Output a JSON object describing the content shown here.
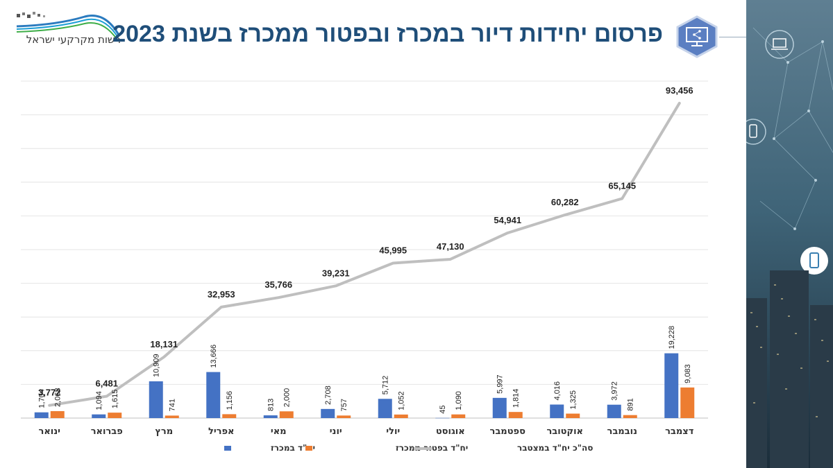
{
  "header": {
    "logo_text": "רשות מקרקעי ישראל",
    "title": "פרסום יחידות דיור במכרז ובפטור ממכרז בשנת 2023"
  },
  "icons": {
    "hex_icon": "monitor-share-icon",
    "side_icons": [
      "laptop-icon",
      "phone-icon",
      "mobile-icon"
    ]
  },
  "colors": {
    "series_a": "#4472C4",
    "series_b": "#ED7D31",
    "series_total": "#BFBFBF",
    "title": "#1F4E79",
    "hex": "#5B7FC2"
  },
  "chart_data": {
    "type": "bar",
    "categories": [
      "ינואר",
      "פברואר",
      "מרץ",
      "אפריל",
      "מאי",
      "יוני",
      "יולי",
      "אוגוסט",
      "ספטמבר",
      "אוקטובר",
      "נובמבר",
      "דצמבר"
    ],
    "series": [
      {
        "name": "יח\"ד במכרז",
        "type": "bar",
        "values": [
          1704,
          1094,
          10909,
          13666,
          813,
          2708,
          5712,
          45,
          5997,
          4016,
          3972,
          19228
        ],
        "labels": [
          "1,704",
          "1,094",
          "10,909",
          "13,666",
          "813",
          "2,708",
          "5,712",
          "45",
          "5,997",
          "4,016",
          "3,972",
          "19,228"
        ]
      },
      {
        "name": "יח\"ד בפטור ממכרז",
        "type": "bar",
        "values": [
          2068,
          1615,
          741,
          1156,
          2000,
          757,
          1052,
          1090,
          1814,
          1325,
          891,
          9083
        ],
        "labels": [
          "2,068",
          "1,615",
          "741",
          "1,156",
          "2,000",
          "757",
          "1,052",
          "1,090",
          "1,814",
          "1,325",
          "891",
          "9,083"
        ]
      },
      {
        "name": "סה\"כ יח\"ד במצטבר",
        "type": "line",
        "values": [
          3772,
          6481,
          18131,
          32953,
          35766,
          39231,
          45995,
          47130,
          54941,
          60282,
          65145,
          93456
        ],
        "labels": [
          "3,772",
          "6,481",
          "18,131",
          "32,953",
          "35,766",
          "39,231",
          "45,995",
          "47,130",
          "54,941",
          "60,282",
          "65,145",
          "93,456"
        ]
      }
    ],
    "ylim": [
      0,
      100000
    ],
    "grid": true,
    "legend": "bottom"
  }
}
